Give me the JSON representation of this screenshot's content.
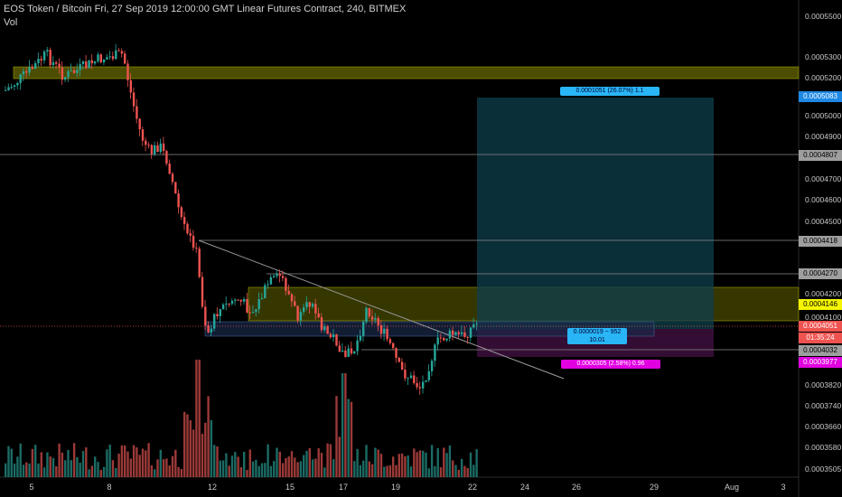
{
  "header": {
    "title": "EOS Token / Bitcoin Fri, 27 Sep 2019 12:00:00 GMT Linear Futures Contract, 240, BITMEX",
    "volume_label": "Vol"
  },
  "price_axis": {
    "ticks": [
      "0.0005500",
      "0.0005300",
      "0.0005200",
      "0.0005000",
      "0.0004900",
      "0.0004700",
      "0.0004600",
      "0.0004500",
      "0.0004200",
      "0.0004100",
      "0.0003820",
      "0.0003740",
      "0.0003660",
      "0.0003580",
      "0.0003505"
    ],
    "badges": [
      {
        "text": "0.0005083",
        "bg": "#1e88e5",
        "fg": "#ffffff"
      },
      {
        "text": "0.0004807",
        "bg": "#9e9e9e",
        "fg": "#000000"
      },
      {
        "text": "0.0004418",
        "bg": "#9e9e9e",
        "fg": "#000000"
      },
      {
        "text": "0.0004270",
        "bg": "#9e9e9e",
        "fg": "#000000"
      },
      {
        "text": "0.0004146",
        "bg": "#f5f500",
        "fg": "#000000"
      },
      {
        "text": "0.0004051",
        "bg": "#ef5350",
        "fg": "#ffffff"
      },
      {
        "text": "01:35:24",
        "bg": "#ef5350",
        "fg": "#ffffff"
      },
      {
        "text": "0.0004032",
        "bg": "#9e9e9e",
        "fg": "#000000"
      },
      {
        "text": "0.0003977",
        "bg": "#e000e0",
        "fg": "#ffffff"
      }
    ]
  },
  "time_axis": {
    "ticks": [
      "5",
      "8",
      "12",
      "15",
      "17",
      "19",
      "22",
      "24",
      "26",
      "29",
      "Aug",
      "3"
    ]
  },
  "position_labels": {
    "target": "0.0001051 (26.07%) 1.1",
    "center_top": "0.0000019 ~ 952",
    "center_bottom": "10.01",
    "stop": "0.0000305 (2.58%) 0.96"
  },
  "colors": {
    "up": "#26a69a",
    "down": "#ef5350",
    "vol_up": "#1b6b64",
    "vol_down": "#9b3a38",
    "zone": "#8a8a00",
    "target": "#1ca0c8",
    "stop": "#b000b0"
  }
}
